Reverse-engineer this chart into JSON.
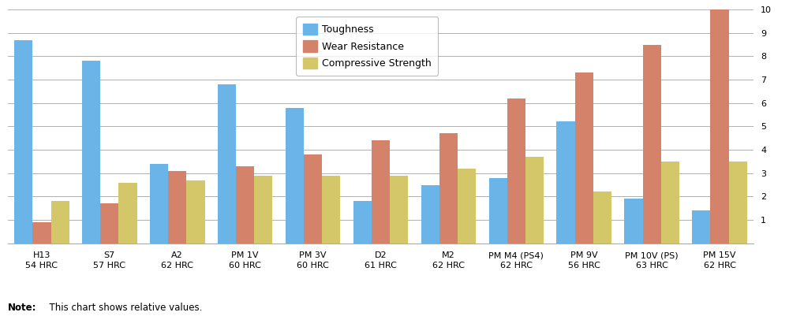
{
  "categories": [
    "H13\n54 HRC",
    "S7\n57 HRC",
    "A2\n62 HRC",
    "PM 1V\n60 HRC",
    "PM 3V\n60 HRC",
    "D2\n61 HRC",
    "M2\n62 HRC",
    "PM M4 (PS4)\n62 HRC",
    "PM 9V\n56 HRC",
    "PM 10V (PS)\n63 HRC",
    "PM 15V\n62 HRC"
  ],
  "toughness": [
    8.7,
    7.8,
    3.4,
    6.8,
    5.8,
    1.8,
    2.5,
    2.8,
    5.2,
    1.9,
    1.4
  ],
  "wear_resistance": [
    0.9,
    1.7,
    3.1,
    3.3,
    3.8,
    4.4,
    4.7,
    6.2,
    7.3,
    8.5,
    10.0
  ],
  "compressive_strength": [
    1.8,
    2.6,
    2.7,
    2.9,
    2.9,
    2.9,
    3.2,
    3.7,
    2.2,
    3.5,
    3.5
  ],
  "color_toughness": "#6ab4e8",
  "color_wear": "#d4826a",
  "color_compressive": "#d4c76a",
  "ylim": [
    0,
    10
  ],
  "yticks": [
    1,
    2,
    3,
    4,
    5,
    6,
    7,
    8,
    9,
    10
  ],
  "legend_labels": [
    "Toughness",
    "Wear Resistance",
    "Compressive Strength"
  ],
  "note_bold": "Note:",
  "note_regular": "  This chart shows relative values.",
  "background_color": "#ffffff",
  "grid_color": "#b0b0b0"
}
